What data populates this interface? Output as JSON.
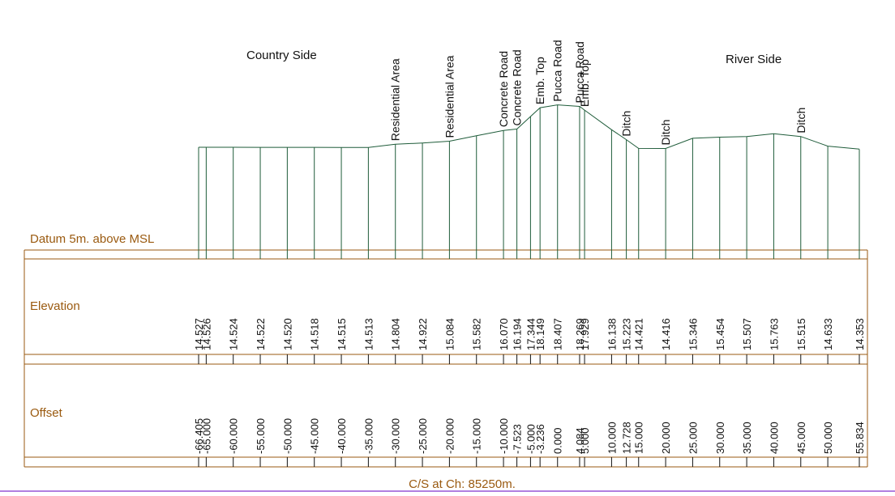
{
  "title_bottom": "C/S at Ch: 85250m.",
  "side_labels": {
    "left": "Country Side",
    "right": "River Side"
  },
  "row_labels": {
    "datum": "Datum 5m. above MSL",
    "elevation": "Elevation",
    "offset": "Offset"
  },
  "colors": {
    "row_border": "#9a5a10",
    "profile_line": "#1f5c3a",
    "text": "#111111",
    "bottom_rule": "#b07fe0"
  },
  "chart_data": {
    "type": "line",
    "title": "C/S at Ch: 85250m.",
    "xlabel": "Offset",
    "ylabel": "Elevation",
    "datum": 5,
    "points": [
      {
        "offset": "-66.405",
        "elevation": "14.527",
        "x": -66.405,
        "y": 14.527,
        "feature": ""
      },
      {
        "offset": "-65.000",
        "elevation": "14.526",
        "x": -65.0,
        "y": 14.526,
        "feature": ""
      },
      {
        "offset": "-60.000",
        "elevation": "14.524",
        "x": -60.0,
        "y": 14.524,
        "feature": ""
      },
      {
        "offset": "-55.000",
        "elevation": "14.522",
        "x": -55.0,
        "y": 14.522,
        "feature": ""
      },
      {
        "offset": "-50.000",
        "elevation": "14.520",
        "x": -50.0,
        "y": 14.52,
        "feature": ""
      },
      {
        "offset": "-45.000",
        "elevation": "14.518",
        "x": -45.0,
        "y": 14.518,
        "feature": ""
      },
      {
        "offset": "-40.000",
        "elevation": "14.515",
        "x": -40.0,
        "y": 14.515,
        "feature": ""
      },
      {
        "offset": "-35.000",
        "elevation": "14.513",
        "x": -35.0,
        "y": 14.513,
        "feature": ""
      },
      {
        "offset": "-30.000",
        "elevation": "14.804",
        "x": -30.0,
        "y": 14.804,
        "feature": "Residential Area"
      },
      {
        "offset": "-25.000",
        "elevation": "14.922",
        "x": -25.0,
        "y": 14.922,
        "feature": ""
      },
      {
        "offset": "-20.000",
        "elevation": "15.084",
        "x": -20.0,
        "y": 15.084,
        "feature": "Residential Area"
      },
      {
        "offset": "-15.000",
        "elevation": "15.582",
        "x": -15.0,
        "y": 15.582,
        "feature": ""
      },
      {
        "offset": "-10.000",
        "elevation": "16.070",
        "x": -10.0,
        "y": 16.07,
        "feature": "Concrete Road"
      },
      {
        "offset": "-7.523",
        "elevation": "16.194",
        "x": -7.523,
        "y": 16.194,
        "feature": "Concrete Road"
      },
      {
        "offset": "-5.000",
        "elevation": "17.344",
        "x": -5.0,
        "y": 17.344,
        "feature": ""
      },
      {
        "offset": "-3.236",
        "elevation": "18.149",
        "x": -3.236,
        "y": 18.149,
        "feature": "Emb. Top"
      },
      {
        "offset": "0.000",
        "elevation": "18.407",
        "x": 0.0,
        "y": 18.407,
        "feature": "Pucca Road"
      },
      {
        "offset": "4.084",
        "elevation": "18.269",
        "x": 4.084,
        "y": 18.269,
        "feature": "Pucca Road"
      },
      {
        "offset": "5.000",
        "elevation": "17.929",
        "x": 5.0,
        "y": 17.929,
        "feature": "Emb. Top"
      },
      {
        "offset": "10.000",
        "elevation": "16.138",
        "x": 10.0,
        "y": 16.138,
        "feature": ""
      },
      {
        "offset": "12.728",
        "elevation": "15.223",
        "x": 12.728,
        "y": 15.223,
        "feature": "Ditch"
      },
      {
        "offset": "15.000",
        "elevation": "14.421",
        "x": 15.0,
        "y": 14.421,
        "feature": ""
      },
      {
        "offset": "20.000",
        "elevation": "14.416",
        "x": 20.0,
        "y": 14.416,
        "feature": "Ditch"
      },
      {
        "offset": "25.000",
        "elevation": "15.346",
        "x": 25.0,
        "y": 15.346,
        "feature": ""
      },
      {
        "offset": "30.000",
        "elevation": "15.454",
        "x": 30.0,
        "y": 15.454,
        "feature": ""
      },
      {
        "offset": "35.000",
        "elevation": "15.507",
        "x": 35.0,
        "y": 15.507,
        "feature": ""
      },
      {
        "offset": "40.000",
        "elevation": "15.763",
        "x": 40.0,
        "y": 15.763,
        "feature": ""
      },
      {
        "offset": "45.000",
        "elevation": "15.515",
        "x": 45.0,
        "y": 15.515,
        "feature": "Ditch"
      },
      {
        "offset": "50.000",
        "elevation": "14.633",
        "x": 50.0,
        "y": 14.633,
        "feature": ""
      },
      {
        "offset": "55.834",
        "elevation": "14.353",
        "x": 55.834,
        "y": 14.353,
        "feature": ""
      }
    ]
  }
}
